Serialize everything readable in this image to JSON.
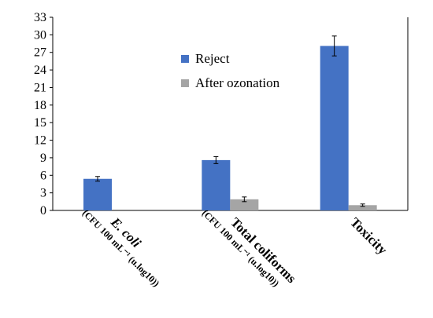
{
  "chart_data": {
    "type": "bar",
    "title": "",
    "xlabel": "",
    "ylabel": "",
    "ylim": [
      0,
      33
    ],
    "yticks": [
      0,
      3,
      6,
      9,
      12,
      15,
      18,
      21,
      24,
      27,
      30,
      33
    ],
    "grid": false,
    "legend_position": "top-center",
    "categories": [
      {
        "label": "E. coli",
        "italic": true,
        "sublabel": "(CFU 100 mL⁻¹ (u.log10))"
      },
      {
        "label": "Total coliforms",
        "italic": false,
        "sublabel": "(CFU 100 mL⁻¹ (u.log10))"
      },
      {
        "label": "Toxicity",
        "italic": false,
        "sublabel": ""
      }
    ],
    "series": [
      {
        "name": "Reject",
        "color": "#4472C4",
        "values": [
          5.4,
          8.6,
          28.1
        ],
        "errors": [
          0.4,
          0.6,
          1.7
        ]
      },
      {
        "name": "After ozonation",
        "color": "#A5A5A5",
        "values": [
          null,
          1.9,
          0.9
        ],
        "errors": [
          null,
          0.4,
          0.2
        ]
      }
    ]
  }
}
